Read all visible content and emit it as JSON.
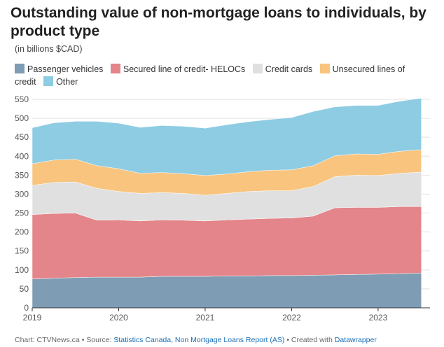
{
  "title": "Outstanding value of non-mortgage loans to individuals, by product type",
  "subtitle": "(in billions $CAD)",
  "footer": {
    "prefix": "Chart: CTVNews.ca • Source: ",
    "source": "Statistics Canada, Non Mortgage Loans Report (AS)",
    "middle": " • Created with ",
    "tool": "Datawrapper"
  },
  "chart_data": {
    "type": "area",
    "stacked": true,
    "title": "Outstanding value of non-mortgage loans to individuals, by product type",
    "subtitle": "(in billions $CAD)",
    "x": [
      2019.0,
      2019.25,
      2019.5,
      2019.75,
      2020.0,
      2020.25,
      2020.5,
      2020.75,
      2021.0,
      2021.25,
      2021.5,
      2021.75,
      2022.0,
      2022.25,
      2022.5,
      2022.75,
      2023.0,
      2023.25,
      2023.5
    ],
    "x_ticks": [
      2019,
      2020,
      2021,
      2022,
      2023
    ],
    "ylim": [
      0,
      550
    ],
    "y_ticks": [
      0,
      50,
      100,
      150,
      200,
      250,
      300,
      350,
      400,
      450,
      500,
      550
    ],
    "grid": true,
    "legend_position": "top",
    "series": [
      {
        "name": "Passenger vehicles",
        "color": "#7e9cb4",
        "values": [
          76,
          78,
          80,
          81,
          81,
          81,
          83,
          83,
          83,
          84,
          84,
          85,
          85,
          86,
          87,
          88,
          89,
          90,
          92
        ]
      },
      {
        "name": "Secured line of credit- HELOCs",
        "color": "#e3858a",
        "values": [
          170,
          171,
          170,
          150,
          151,
          148,
          149,
          148,
          146,
          148,
          150,
          151,
          152,
          156,
          177,
          177,
          176,
          177,
          175
        ]
      },
      {
        "name": "Credit cards",
        "color": "#e0e0e0",
        "values": [
          77,
          82,
          82,
          84,
          75,
          73,
          72,
          71,
          68,
          70,
          73,
          73,
          72,
          78,
          82,
          85,
          84,
          88,
          91
        ]
      },
      {
        "name": "Unsecured lines of credit",
        "color": "#f8c47e",
        "values": [
          57,
          59,
          60,
          60,
          60,
          53,
          53,
          52,
          52,
          51,
          52,
          54,
          55,
          55,
          55,
          56,
          56,
          58,
          59
        ]
      },
      {
        "name": "Other",
        "color": "#8dcce3",
        "values": [
          95,
          98,
          100,
          117,
          120,
          121,
          124,
          125,
          125,
          130,
          132,
          134,
          138,
          143,
          129,
          128,
          129,
          132,
          136
        ]
      }
    ]
  }
}
